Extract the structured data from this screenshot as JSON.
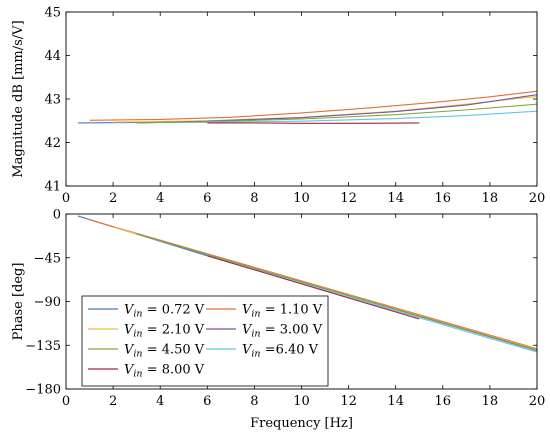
{
  "chart_data": [
    {
      "type": "line",
      "title": "",
      "xlabel": "",
      "ylabel": "Magnitude dB [mm/s/V]",
      "xlim": [
        0,
        20
      ],
      "ylim": [
        41,
        45
      ],
      "xticks": [
        "0",
        "2",
        "4",
        "6",
        "8",
        "10",
        "12",
        "14",
        "16",
        "18",
        "20"
      ],
      "yticks": [
        "41",
        "42",
        "43",
        "44",
        "45"
      ],
      "grid": false,
      "series": [
        {
          "name": "V_in = 0.72 V",
          "color": "#4a78c2",
          "x": [
            0.5,
            6.0
          ],
          "y": [
            42.45,
            42.47
          ]
        },
        {
          "name": "V_in = 1.10 V",
          "color": "#e2703a",
          "x": [
            1.0,
            4.0,
            7.0,
            10.0,
            13.0,
            16.0,
            18.0,
            20.0
          ],
          "y": [
            42.51,
            42.53,
            42.58,
            42.68,
            42.8,
            42.94,
            43.05,
            43.18
          ]
        },
        {
          "name": "V_in = 2.10 V",
          "color": "#e8c23e",
          "x": [
            2.0,
            6.0,
            10.0,
            14.0,
            17.0,
            20.0
          ],
          "y": [
            42.47,
            42.5,
            42.58,
            42.72,
            42.88,
            43.06
          ]
        },
        {
          "name": "V_in = 3.00 V",
          "color": "#7a52a8",
          "x": [
            3.0,
            6.0,
            10.0,
            14.0,
            17.0,
            20.0
          ],
          "y": [
            42.45,
            42.49,
            42.57,
            42.71,
            42.86,
            43.1
          ]
        },
        {
          "name": "V_in = 4.50 V",
          "color": "#86a83a",
          "x": [
            3.0,
            6.0,
            10.0,
            14.0,
            17.0,
            20.0
          ],
          "y": [
            42.45,
            42.48,
            42.54,
            42.64,
            42.75,
            42.88
          ]
        },
        {
          "name": "V_in =6.40 V",
          "color": "#5cc8e8",
          "x": [
            6.0,
            10.0,
            14.0,
            17.0,
            20.0
          ],
          "y": [
            42.47,
            42.49,
            42.55,
            42.62,
            42.72
          ]
        },
        {
          "name": "V_in = 8.00 V",
          "color": "#a8253c",
          "x": [
            6.0,
            8.0,
            10.0,
            12.0,
            15.0
          ],
          "y": [
            42.45,
            42.45,
            42.44,
            42.44,
            42.45
          ]
        }
      ]
    },
    {
      "type": "line",
      "title": "",
      "xlabel": "Frequency [Hz]",
      "ylabel": "Phase [deg]",
      "xlim": [
        0,
        20
      ],
      "ylim": [
        -180,
        0
      ],
      "xticks": [
        "0",
        "2",
        "4",
        "6",
        "8",
        "10",
        "12",
        "14",
        "16",
        "18",
        "20"
      ],
      "yticks": [
        "0",
        "−45",
        "−90",
        "−135",
        "−180"
      ],
      "grid": false,
      "legend": "lower-left",
      "series": [
        {
          "name": "V_in = 0.72 V",
          "color": "#4a78c2",
          "x": [
            0.5,
            6.0
          ],
          "y": [
            -2.0,
            -43.0
          ]
        },
        {
          "name": "V_in = 1.10 V",
          "color": "#e2703a",
          "x": [
            1.0,
            20.0
          ],
          "y": [
            -6.0,
            -138.5
          ]
        },
        {
          "name": "V_in = 2.10 V",
          "color": "#e8c23e",
          "x": [
            2.0,
            20.0
          ],
          "y": [
            -13.5,
            -139.5
          ]
        },
        {
          "name": "V_in = 3.00 V",
          "color": "#7a52a8",
          "x": [
            3.0,
            20.0
          ],
          "y": [
            -20.5,
            -140.5
          ]
        },
        {
          "name": "V_in = 4.50 V",
          "color": "#86a83a",
          "x": [
            3.0,
            20.0
          ],
          "y": [
            -20.5,
            -140.0
          ]
        },
        {
          "name": "V_in =6.40 V",
          "color": "#5cc8e8",
          "x": [
            6.0,
            20.0
          ],
          "y": [
            -43.0,
            -142.0
          ]
        },
        {
          "name": "V_in = 8.00 V",
          "color": "#a8253c",
          "x": [
            6.0,
            15.0
          ],
          "y": [
            -43.0,
            -108.0
          ]
        }
      ],
      "legend_entries": [
        {
          "prefix": "V",
          "sub": "in",
          "suffix": " = 0.72 V",
          "color": "#4a78c2"
        },
        {
          "prefix": "V",
          "sub": "in",
          "suffix": " = 1.10 V",
          "color": "#e2703a"
        },
        {
          "prefix": "V",
          "sub": "in",
          "suffix": " = 2.10 V",
          "color": "#e8c23e"
        },
        {
          "prefix": "V",
          "sub": "in",
          "suffix": " = 3.00 V",
          "color": "#7a52a8"
        },
        {
          "prefix": "V",
          "sub": "in",
          "suffix": " = 4.50 V",
          "color": "#86a83a"
        },
        {
          "prefix": "V",
          "sub": "in",
          "suffix": " =6.40 V",
          "color": "#5cc8e8"
        },
        {
          "prefix": "V",
          "sub": "in",
          "suffix": " = 8.00 V",
          "color": "#a8253c"
        }
      ]
    }
  ]
}
